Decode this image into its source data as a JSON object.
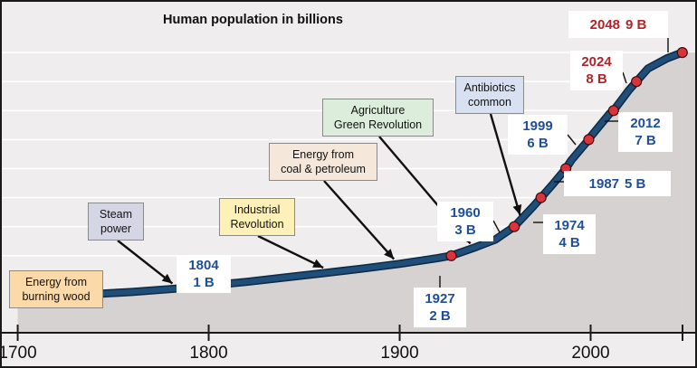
{
  "chart_data": {
    "type": "line",
    "title": "Human population in billions",
    "xlabel": "",
    "ylabel": "",
    "xlim": [
      1695,
      2050
    ],
    "ylim": [
      0,
      10
    ],
    "x_ticks": [
      1700,
      1800,
      1900,
      2000
    ],
    "grid": "horizontal",
    "series": [
      {
        "x": [
          1700,
          1720,
          1740,
          1760,
          1780,
          1800,
          1804,
          1820,
          1840,
          1860,
          1880,
          1900,
          1920,
          1927,
          1940,
          1950,
          1960,
          1970,
          1974,
          1980,
          1987,
          1990,
          1999,
          2000,
          2010,
          2012,
          2020,
          2024,
          2030,
          2040,
          2048
        ],
        "values": [
          0.6,
          0.63,
          0.68,
          0.75,
          0.85,
          0.95,
          1.0,
          1.1,
          1.25,
          1.4,
          1.55,
          1.72,
          1.92,
          2.0,
          2.3,
          2.55,
          3.0,
          3.7,
          4.0,
          4.45,
          5.0,
          5.3,
          6.0,
          6.1,
          6.9,
          7.0,
          7.7,
          8.0,
          8.45,
          8.8,
          9.0
        ]
      }
    ],
    "milestones": [
      {
        "year_label": "1804",
        "pop_label": "1 B",
        "year": 1804,
        "value": 1.0,
        "highlight": false
      },
      {
        "year_label": "1927",
        "pop_label": "2 B",
        "year": 1927,
        "value": 2.0,
        "highlight": false
      },
      {
        "year_label": "1960",
        "pop_label": "3 B",
        "year": 1960,
        "value": 3.0,
        "highlight": false
      },
      {
        "year_label": "1974",
        "pop_label": "4 B",
        "year": 1974,
        "value": 4.0,
        "highlight": false
      },
      {
        "year_label": "1987",
        "pop_label": "5 B",
        "year": 1987,
        "value": 5.0,
        "highlight": false
      },
      {
        "year_label": "1999",
        "pop_label": "6 B",
        "year": 1999,
        "value": 6.0,
        "highlight": false
      },
      {
        "year_label": "2012",
        "pop_label": "7 B",
        "year": 2012,
        "value": 7.0,
        "highlight": false
      },
      {
        "year_label": "2024",
        "pop_label": "8 B",
        "year": 2024,
        "value": 8.0,
        "highlight": true
      },
      {
        "year_label": "2048",
        "pop_label": "9 B",
        "year": 2048,
        "value": 9.0,
        "highlight": true
      }
    ],
    "annotations": [
      {
        "lines": [
          "Energy from",
          "burning wood"
        ],
        "color": "#fcd9a8"
      },
      {
        "lines": [
          "Steam",
          "power"
        ],
        "color": "#d4d6e6",
        "target_year": 1781
      },
      {
        "lines": [
          "Industrial",
          "Revolution"
        ],
        "color": "#fdf1b8",
        "target_year": 1860
      },
      {
        "lines": [
          "Energy from",
          "coal & petroleum"
        ],
        "color": "#f5e7da",
        "target_year": 1897
      },
      {
        "lines": [
          "Agriculture",
          "Green Revolution"
        ],
        "color": "#dceedb",
        "target_year": 1937
      },
      {
        "lines": [
          "Antibiotics",
          "common"
        ],
        "color": "#d8e1f1",
        "target_year": 1963
      }
    ],
    "colors": {
      "curve": "#1f4e79",
      "dot": "#d9333b",
      "label_blue": "#1f4e9a",
      "label_red": "#b3232a",
      "area": "#d6d2d2",
      "background": "#efeded"
    }
  }
}
